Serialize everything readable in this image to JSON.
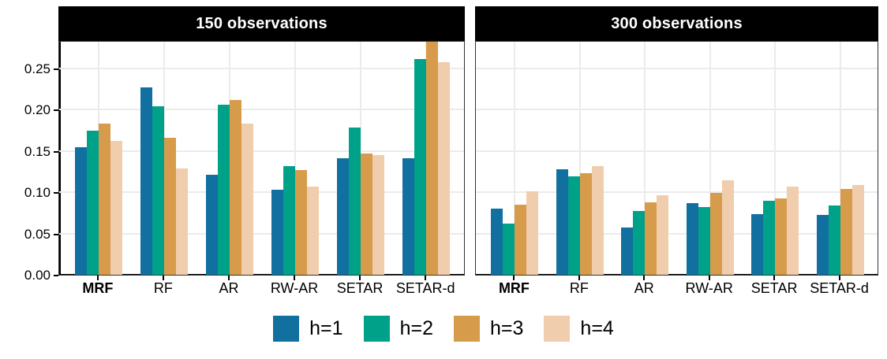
{
  "chart_data": {
    "type": "bar",
    "title": "",
    "categories": [
      "MRF",
      "RF",
      "AR",
      "RW-AR",
      "SETAR",
      "SETAR-d"
    ],
    "bold_category": "MRF",
    "panels": [
      {
        "title": "150 observations",
        "series": [
          {
            "name": "h=1",
            "values": [
              0.154,
              0.227,
              0.121,
              0.103,
              0.141,
              0.141
            ]
          },
          {
            "name": "h=2",
            "values": [
              0.174,
              0.204,
              0.206,
              0.132,
              0.178,
              0.261
            ]
          },
          {
            "name": "h=3",
            "values": [
              0.183,
              0.166,
              0.212,
              0.127,
              0.147,
              0.285
            ]
          },
          {
            "name": "h=4",
            "values": [
              0.162,
              0.129,
              0.183,
              0.107,
              0.145,
              0.257
            ]
          }
        ]
      },
      {
        "title": "300 observations",
        "series": [
          {
            "name": "h=1",
            "values": [
              0.08,
              0.128,
              0.057,
              0.087,
              0.073,
              0.072
            ]
          },
          {
            "name": "h=2",
            "values": [
              0.062,
              0.119,
              0.077,
              0.082,
              0.09,
              0.084
            ]
          },
          {
            "name": "h=3",
            "values": [
              0.085,
              0.123,
              0.088,
              0.099,
              0.092,
              0.104
            ]
          },
          {
            "name": "h=4",
            "values": [
              0.101,
              0.132,
              0.096,
              0.114,
              0.107,
              0.109
            ]
          }
        ]
      }
    ],
    "legend": [
      {
        "label": "h=1",
        "color": "#1170a0"
      },
      {
        "label": "h=2",
        "color": "#00a189"
      },
      {
        "label": "h=3",
        "color": "#d69c4c"
      },
      {
        "label": "h=4",
        "color": "#f0cdad"
      }
    ],
    "yticks": {
      "labels": [
        "0.00",
        "0.05",
        "0.10",
        "0.15",
        "0.20",
        "0.25"
      ],
      "values": [
        0,
        0.05,
        0.1,
        0.15,
        0.2,
        0.25
      ]
    },
    "ylim": [
      0,
      0.284
    ],
    "xlabel": "",
    "ylabel": "",
    "grid": "major horizontal and vertical light-gray gridlines on white panel",
    "legend_position": "bottom center",
    "strip_style": {
      "background": "#000000",
      "text_color": "#ffffff"
    },
    "note": "h=3 bar of SETAR-d in the 150-observations panel is clipped at the panel top"
  }
}
